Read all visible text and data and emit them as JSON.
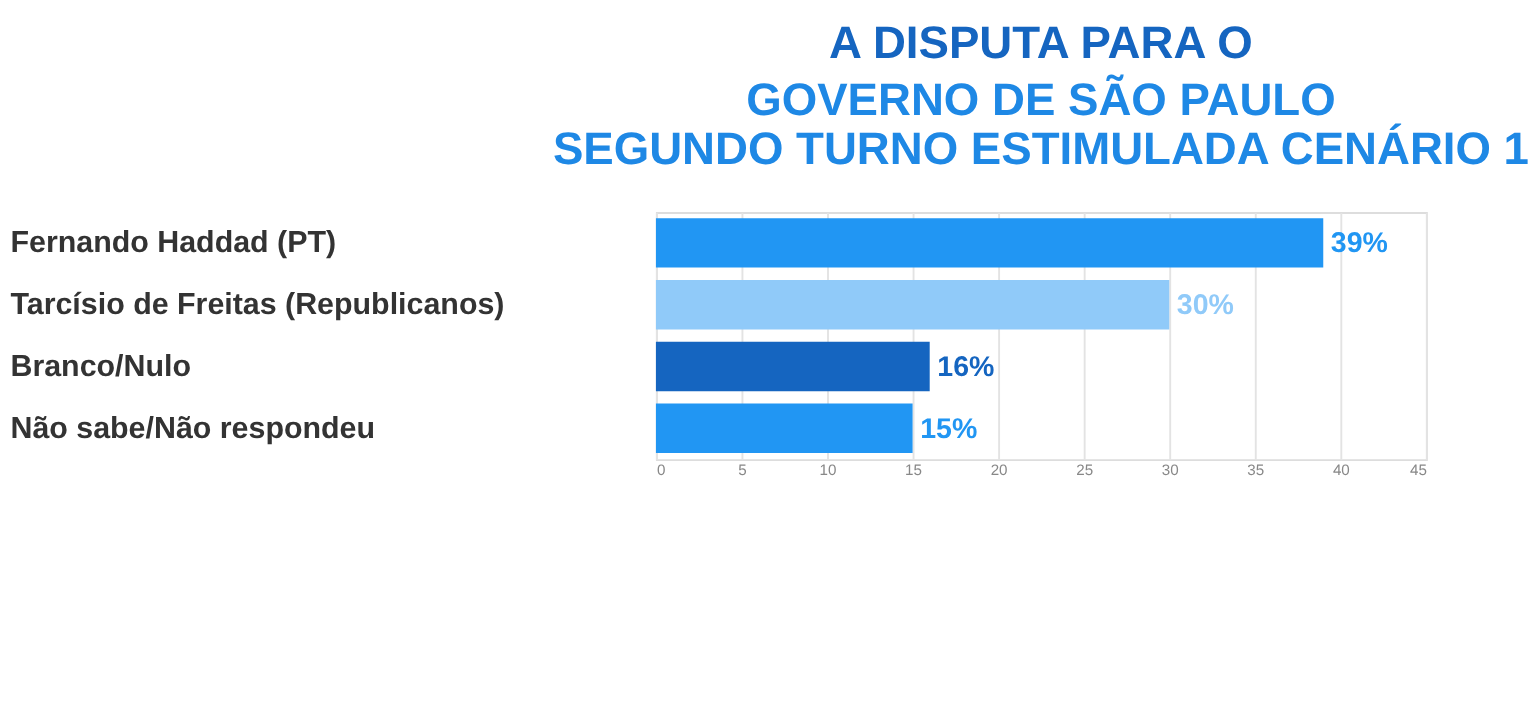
{
  "chart_data": {
    "type": "bar",
    "orientation": "horizontal",
    "title": "A DISPUTA PARA O",
    "subtitle": "GOVERNO DE SÃO PAULO",
    "annotations": [
      "SEGUNDO TURNO ESTIMULADA CENÁRIO 1"
    ],
    "categories": [
      "Fernando Haddad (PT)",
      "Tarcísio de Freitas (Republicanos)",
      "Branco/Nulo",
      "Não sabe/Não respondeu"
    ],
    "values": [
      39,
      30,
      16,
      15
    ],
    "colors": [
      "#2196f3",
      "#90caf9",
      "#1565c0",
      "#2196f3"
    ],
    "value_labels": [
      "39%",
      "30%",
      "16%",
      "15%"
    ],
    "xlim": [
      0,
      45
    ],
    "xticks": [
      0,
      5,
      10,
      15,
      20,
      25,
      30,
      35,
      40,
      45
    ],
    "grid": "x"
  }
}
